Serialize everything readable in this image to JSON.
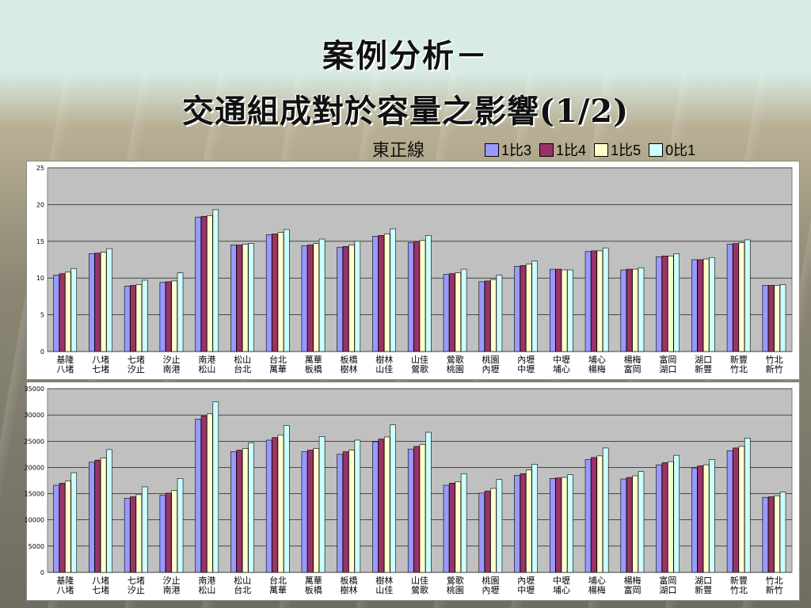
{
  "title_line1": "案例分析－",
  "title_line2": "交通組成對於容量之影響(1/2)",
  "subtitle": "東正線",
  "colors": {
    "series1": "#9999ff",
    "series2": "#993366",
    "series3": "#ffffcc",
    "series4": "#ccffff",
    "plot_bg": "#c0c0c0"
  },
  "legend": [
    "1比3",
    "1比4",
    "1比5",
    "0比1"
  ],
  "chart_data": [
    {
      "type": "bar",
      "categories": [
        [
          "基隆",
          "八堵"
        ],
        [
          "八堵",
          "七堵"
        ],
        [
          "七堵",
          "汐止"
        ],
        [
          "汐止",
          "南港"
        ],
        [
          "南港",
          "松山"
        ],
        [
          "松山",
          "台北"
        ],
        [
          "台北",
          "萬華"
        ],
        [
          "萬華",
          "板橋"
        ],
        [
          "板橋",
          "樹林"
        ],
        [
          "樹林",
          "山佳"
        ],
        [
          "山佳",
          "鶯歌"
        ],
        [
          "鶯歌",
          "桃園"
        ],
        [
          "桃園",
          "內壢"
        ],
        [
          "內壢",
          "中壢"
        ],
        [
          "中壢",
          "埔心"
        ],
        [
          "埔心",
          "楊梅"
        ],
        [
          "楊梅",
          "富岡"
        ],
        [
          "富岡",
          "湖口"
        ],
        [
          "湖口",
          "新豐"
        ],
        [
          "新豐",
          "竹北"
        ],
        [
          "竹北",
          "新竹"
        ]
      ],
      "series": [
        {
          "name": "1比3",
          "values": [
            10.4,
            13.3,
            8.9,
            9.4,
            18.3,
            14.5,
            15.9,
            14.4,
            14.2,
            15.7,
            14.8,
            10.5,
            9.5,
            11.6,
            11.2,
            13.6,
            11.1,
            12.9,
            12.5,
            14.6,
            9.0
          ]
        },
        {
          "name": "1比4",
          "values": [
            10.6,
            13.4,
            9.0,
            9.5,
            18.4,
            14.5,
            16.0,
            14.5,
            14.3,
            15.8,
            14.9,
            10.6,
            9.6,
            11.7,
            11.2,
            13.7,
            11.2,
            13.0,
            12.5,
            14.7,
            9.0
          ]
        },
        {
          "name": "1比5",
          "values": [
            10.8,
            13.5,
            9.1,
            9.6,
            18.5,
            14.6,
            16.2,
            14.7,
            14.5,
            16.0,
            15.1,
            10.7,
            9.8,
            11.9,
            11.1,
            13.7,
            11.2,
            13.0,
            12.6,
            14.8,
            9.0
          ]
        },
        {
          "name": "0比1",
          "values": [
            11.3,
            14.0,
            9.7,
            10.7,
            19.3,
            14.7,
            16.6,
            15.3,
            15.0,
            16.7,
            15.8,
            11.2,
            10.4,
            12.3,
            11.1,
            14.1,
            11.4,
            13.3,
            12.8,
            15.2,
            9.1
          ]
        }
      ],
      "ylim": [
        0,
        25
      ],
      "yticks": [
        0,
        5,
        10,
        15,
        20,
        25
      ]
    },
    {
      "type": "bar",
      "categories": [
        [
          "基隆",
          "八堵"
        ],
        [
          "八堵",
          "七堵"
        ],
        [
          "七堵",
          "汐止"
        ],
        [
          "汐止",
          "南港"
        ],
        [
          "南港",
          "松山"
        ],
        [
          "松山",
          "台北"
        ],
        [
          "台北",
          "萬華"
        ],
        [
          "萬華",
          "板橋"
        ],
        [
          "板橋",
          "樹林"
        ],
        [
          "樹林",
          "山佳"
        ],
        [
          "山佳",
          "鶯歌"
        ],
        [
          "鶯歌",
          "桃園"
        ],
        [
          "桃園",
          "內壢"
        ],
        [
          "內壢",
          "中壢"
        ],
        [
          "中壢",
          "埔心"
        ],
        [
          "埔心",
          "楊梅"
        ],
        [
          "楊梅",
          "富岡"
        ],
        [
          "富岡",
          "湖口"
        ],
        [
          "湖口",
          "新豐"
        ],
        [
          "新豐",
          "竹北"
        ],
        [
          "竹北",
          "新竹"
        ]
      ],
      "series": [
        {
          "name": "1比3",
          "values": [
            16600,
            21000,
            14100,
            14700,
            29200,
            23000,
            25200,
            23000,
            22500,
            24900,
            23500,
            16600,
            15100,
            18500,
            17900,
            21500,
            17800,
            20500,
            19900,
            23200,
            14300
          ]
        },
        {
          "name": "1比4",
          "values": [
            17000,
            21400,
            14400,
            15100,
            29800,
            23300,
            25700,
            23300,
            23000,
            25400,
            24000,
            17000,
            15500,
            18800,
            18000,
            21900,
            18100,
            20900,
            20300,
            23700,
            14400
          ]
        },
        {
          "name": "1比5",
          "values": [
            17400,
            21800,
            14800,
            15600,
            30200,
            23600,
            26200,
            23600,
            23300,
            25800,
            24400,
            17300,
            16000,
            19500,
            18100,
            22200,
            18400,
            21100,
            20500,
            24000,
            14600
          ]
        },
        {
          "name": "0比1",
          "values": [
            19000,
            23400,
            16300,
            17900,
            32500,
            24700,
            28000,
            25900,
            25200,
            28100,
            26700,
            18800,
            17700,
            20600,
            18600,
            23700,
            19200,
            22300,
            21500,
            25600,
            15300
          ]
        }
      ],
      "ylim": [
        0,
        35000
      ],
      "yticks": [
        0,
        5000,
        10000,
        15000,
        20000,
        25000,
        30000,
        35000
      ]
    }
  ]
}
